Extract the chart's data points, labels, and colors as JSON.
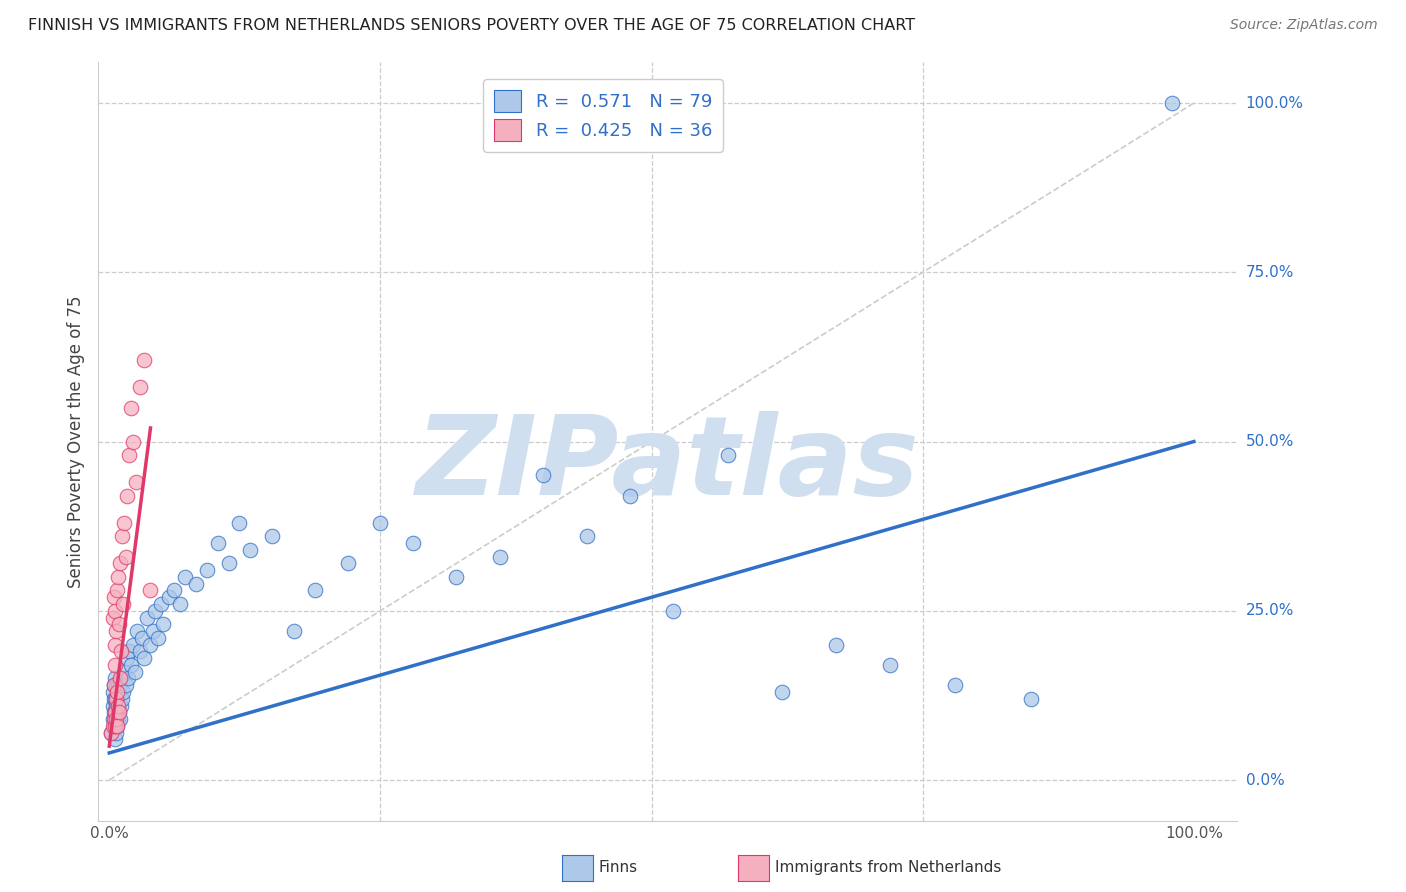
{
  "title": "FINNISH VS IMMIGRANTS FROM NETHERLANDS SENIORS POVERTY OVER THE AGE OF 75 CORRELATION CHART",
  "source": "Source: ZipAtlas.com",
  "ylabel": "Seniors Poverty Over the Age of 75",
  "R_finns": 0.571,
  "N_finns": 79,
  "R_netherlands": 0.425,
  "N_netherlands": 36,
  "color_finns": "#adc8e8",
  "color_netherlands": "#f5b0c0",
  "line_color_finns": "#3070c8",
  "line_color_netherlands": "#e03868",
  "watermark": "ZIPatlas",
  "watermark_color": "#d0dff0",
  "legend_finns_label": "Finns",
  "legend_netherlands_label": "Immigrants from Netherlands",
  "finns_x": [
    0.002,
    0.003,
    0.003,
    0.003,
    0.004,
    0.004,
    0.004,
    0.004,
    0.005,
    0.005,
    0.005,
    0.005,
    0.005,
    0.005,
    0.006,
    0.006,
    0.006,
    0.006,
    0.007,
    0.007,
    0.008,
    0.008,
    0.008,
    0.009,
    0.009,
    0.01,
    0.01,
    0.011,
    0.011,
    0.012,
    0.013,
    0.014,
    0.015,
    0.016,
    0.017,
    0.018,
    0.02,
    0.022,
    0.024,
    0.026,
    0.028,
    0.03,
    0.032,
    0.035,
    0.038,
    0.04,
    0.042,
    0.045,
    0.048,
    0.05,
    0.055,
    0.06,
    0.065,
    0.07,
    0.08,
    0.09,
    0.1,
    0.11,
    0.12,
    0.13,
    0.15,
    0.17,
    0.19,
    0.22,
    0.25,
    0.28,
    0.32,
    0.36,
    0.4,
    0.44,
    0.48,
    0.52,
    0.57,
    0.62,
    0.67,
    0.72,
    0.78,
    0.85,
    0.98
  ],
  "finns_y": [
    0.07,
    0.09,
    0.11,
    0.13,
    0.08,
    0.1,
    0.12,
    0.14,
    0.06,
    0.08,
    0.09,
    0.1,
    0.12,
    0.15,
    0.07,
    0.09,
    0.11,
    0.14,
    0.08,
    0.12,
    0.09,
    0.11,
    0.14,
    0.1,
    0.13,
    0.09,
    0.14,
    0.11,
    0.15,
    0.12,
    0.13,
    0.16,
    0.14,
    0.18,
    0.15,
    0.19,
    0.17,
    0.2,
    0.16,
    0.22,
    0.19,
    0.21,
    0.18,
    0.24,
    0.2,
    0.22,
    0.25,
    0.21,
    0.26,
    0.23,
    0.27,
    0.28,
    0.26,
    0.3,
    0.29,
    0.31,
    0.35,
    0.32,
    0.38,
    0.34,
    0.36,
    0.22,
    0.28,
    0.32,
    0.38,
    0.35,
    0.3,
    0.33,
    0.45,
    0.36,
    0.42,
    0.25,
    0.48,
    0.13,
    0.2,
    0.17,
    0.14,
    0.12,
    1.0
  ],
  "netherlands_x": [
    0.002,
    0.003,
    0.003,
    0.004,
    0.004,
    0.004,
    0.005,
    0.005,
    0.005,
    0.005,
    0.005,
    0.006,
    0.006,
    0.006,
    0.007,
    0.007,
    0.007,
    0.008,
    0.008,
    0.009,
    0.009,
    0.01,
    0.01,
    0.011,
    0.012,
    0.013,
    0.014,
    0.015,
    0.016,
    0.018,
    0.02,
    0.022,
    0.025,
    0.028,
    0.032,
    0.038
  ],
  "netherlands_y": [
    0.07,
    0.08,
    0.24,
    0.09,
    0.14,
    0.27,
    0.08,
    0.1,
    0.17,
    0.2,
    0.25,
    0.09,
    0.12,
    0.22,
    0.08,
    0.13,
    0.28,
    0.11,
    0.3,
    0.1,
    0.23,
    0.15,
    0.32,
    0.19,
    0.36,
    0.26,
    0.38,
    0.33,
    0.42,
    0.48,
    0.55,
    0.5,
    0.44,
    0.58,
    0.62,
    0.28
  ],
  "blue_line_x0": 0.0,
  "blue_line_y0": 0.04,
  "blue_line_x1": 1.0,
  "blue_line_y1": 0.5,
  "pink_line_x0": 0.0,
  "pink_line_y0": 0.05,
  "pink_line_x1": 0.038,
  "pink_line_y1": 0.52,
  "diag_line_x": [
    0.0,
    1.0
  ],
  "diag_line_y": [
    0.0,
    1.0
  ],
  "xlim": [
    -0.01,
    1.04
  ],
  "ylim": [
    -0.06,
    1.06
  ],
  "ytick_vals": [
    0.0,
    0.25,
    0.5,
    0.75,
    1.0
  ],
  "ytick_labels": [
    "0.0%",
    "25.0%",
    "50.0%",
    "75.0%",
    "100.0%"
  ],
  "xtick_vals": [
    0.0,
    0.25,
    0.5,
    0.75,
    1.0
  ],
  "xtick_labels": [
    "0.0%",
    "",
    "",
    "",
    "100.0%"
  ]
}
